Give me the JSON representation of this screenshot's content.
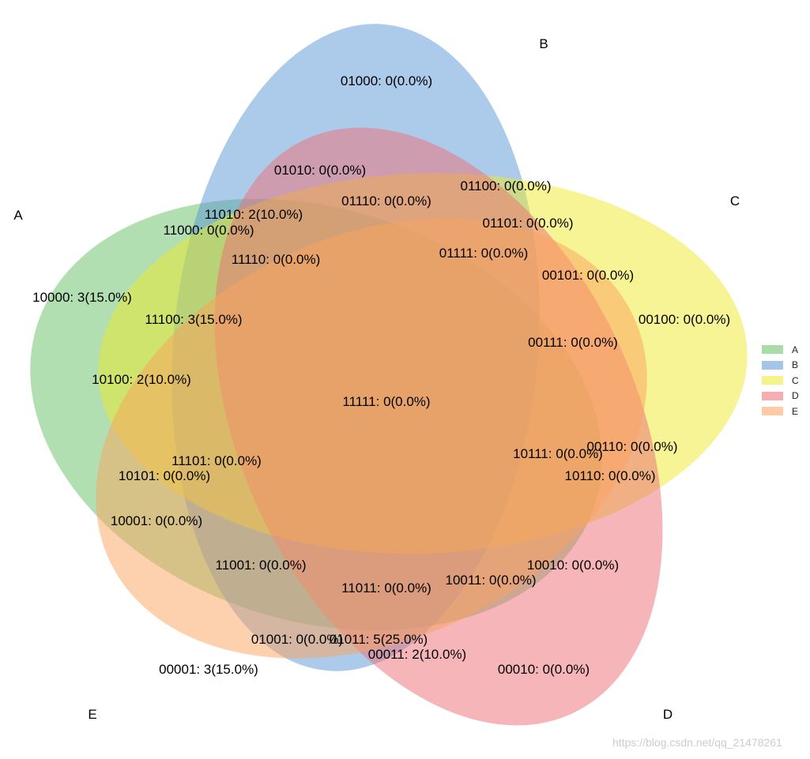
{
  "sets": [
    {
      "name": "A",
      "color": "#66c166"
    },
    {
      "name": "B",
      "color": "#5b96d4"
    },
    {
      "name": "C",
      "color": "#eeea2b"
    },
    {
      "name": "D",
      "color": "#ee6f75"
    },
    {
      "name": "E",
      "color": "#fca45f"
    }
  ],
  "regions": [
    {
      "code": "01000",
      "label": "01000: 0(0.0%)"
    },
    {
      "code": "01010",
      "label": "01010: 0(0.0%)"
    },
    {
      "code": "01110",
      "label": "01110: 0(0.0%)"
    },
    {
      "code": "01100",
      "label": "01100: 0(0.0%)"
    },
    {
      "code": "11010",
      "label": "11010: 2(10.0%)"
    },
    {
      "code": "11000",
      "label": "11000: 0(0.0%)"
    },
    {
      "code": "01101",
      "label": "01101: 0(0.0%)"
    },
    {
      "code": "01111",
      "label": "01111: 0(0.0%)"
    },
    {
      "code": "11110",
      "label": "11110: 0(0.0%)"
    },
    {
      "code": "00101",
      "label": "00101: 0(0.0%)"
    },
    {
      "code": "10000",
      "label": "10000: 3(15.0%)"
    },
    {
      "code": "11100",
      "label": "11100: 3(15.0%)"
    },
    {
      "code": "00100",
      "label": "00100: 0(0.0%)"
    },
    {
      "code": "00111",
      "label": "00111: 0(0.0%)"
    },
    {
      "code": "10100",
      "label": "10100: 2(10.0%)"
    },
    {
      "code": "11111",
      "label": "11111: 0(0.0%)"
    },
    {
      "code": "00110",
      "label": "00110: 0(0.0%)"
    },
    {
      "code": "10111",
      "label": "10111: 0(0.0%)"
    },
    {
      "code": "11101",
      "label": "11101: 0(0.0%)"
    },
    {
      "code": "10101",
      "label": "10101: 0(0.0%)"
    },
    {
      "code": "10110",
      "label": "10110: 0(0.0%)"
    },
    {
      "code": "10001",
      "label": "10001: 0(0.0%)"
    },
    {
      "code": "11001",
      "label": "11001: 0(0.0%)"
    },
    {
      "code": "10010",
      "label": "10010: 0(0.0%)"
    },
    {
      "code": "10011",
      "label": "10011: 0(0.0%)"
    },
    {
      "code": "11011",
      "label": "11011: 0(0.0%)"
    },
    {
      "code": "01001",
      "label": "01001: 0(0.0%)"
    },
    {
      "code": "01011",
      "label": "01011: 5(25.0%)"
    },
    {
      "code": "00011",
      "label": "00011: 2(10.0%)"
    },
    {
      "code": "00001",
      "label": "00001: 3(15.0%)"
    },
    {
      "code": "00010",
      "label": "00010: 0(0.0%)"
    }
  ],
  "legend": {
    "items": [
      "A",
      "B",
      "C",
      "D",
      "E"
    ]
  },
  "watermark": "https://blog.csdn.net/qq_21478261"
}
